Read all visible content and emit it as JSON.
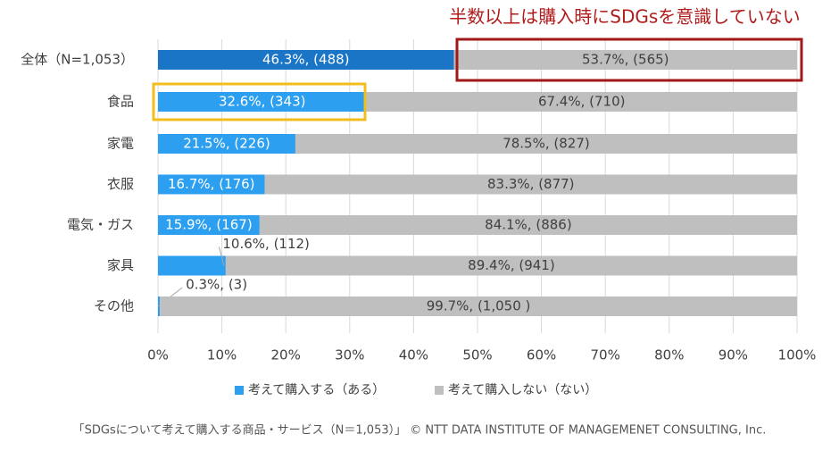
{
  "chart_data": {
    "type": "stacked-bar-horizontal",
    "annotation": "半数以上は購入時にSDGsを意識していない",
    "source": "「SDGsについて考えて購入する商品・サービス（N＝1,053）」 © NTT DATA INSTITUTE OF MANAGEMENET CONSULTING, Inc.",
    "categories": [
      "全体（N=1,053）",
      "食品",
      "家電",
      "衣服",
      "電気・ガス",
      "家具",
      "その他"
    ],
    "series": [
      {
        "name": "考えて購入する（ある）",
        "color": "#2c9ff0",
        "colors": [
          "#1a75c6",
          "#2c9ff0",
          "#2c9ff0",
          "#2c9ff0",
          "#2c9ff0",
          "#2c9ff0",
          "#2c9ff0"
        ],
        "values": [
          46.3,
          32.6,
          21.5,
          16.7,
          15.9,
          10.6,
          0.3
        ],
        "value_labels": [
          "46.3%, (488)",
          "32.6%, (343)",
          "21.5%, (226)",
          "16.7%, (176)",
          "15.9%, (167)",
          "10.6%, (112)",
          "0.3%, (3)"
        ]
      },
      {
        "name": "考えて購入しない（ない）",
        "color": "#bfbfbf",
        "values": [
          53.7,
          67.4,
          78.5,
          83.3,
          84.1,
          89.4,
          99.7
        ],
        "value_labels": [
          "53.7%, (565)",
          "67.4%, (710)",
          "78.5%, (827)",
          "83.3%, (877)",
          "84.1%, (886)",
          "89.4%, (941)",
          "99.7%, (1,050 )"
        ]
      }
    ],
    "xlim": [
      0,
      100
    ],
    "xticks": [
      {
        "value": 0,
        "label": "0%"
      },
      {
        "value": 10,
        "label": "10%"
      },
      {
        "value": 20,
        "label": "20%"
      },
      {
        "value": 30,
        "label": "30%"
      },
      {
        "value": 40,
        "label": "40%"
      },
      {
        "value": 50,
        "label": "50%"
      },
      {
        "value": 60,
        "label": "60%"
      },
      {
        "value": 70,
        "label": "70%"
      },
      {
        "value": 80,
        "label": "80%"
      },
      {
        "value": 90,
        "label": "90%"
      },
      {
        "value": 100,
        "label": "100%"
      }
    ],
    "grid": true
  }
}
